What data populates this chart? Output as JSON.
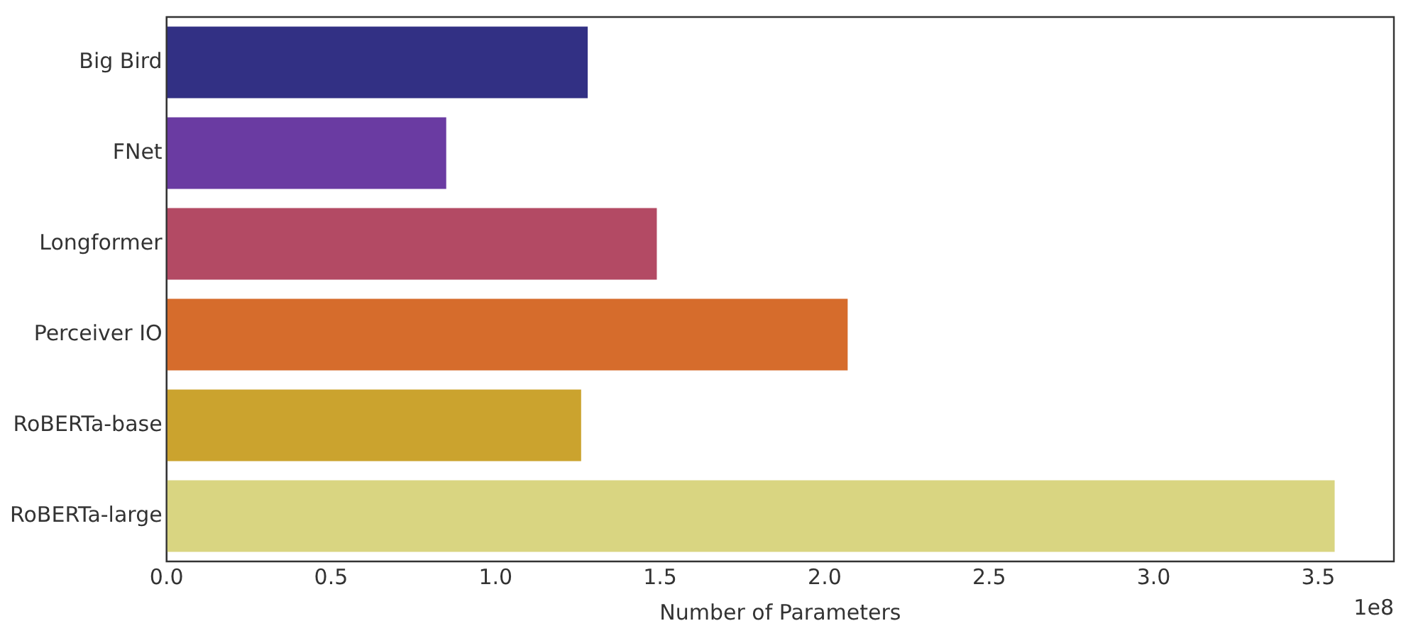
{
  "chart_data": {
    "type": "bar",
    "orientation": "horizontal",
    "xlabel": "Number of Parameters",
    "categories": [
      "Big Bird",
      "FNet",
      "Longformer",
      "Perceiver IO",
      "RoBERTa-base",
      "RoBERTa-large"
    ],
    "values": [
      1.28,
      0.85,
      1.49,
      2.07,
      1.26,
      3.55
    ],
    "colors": [
      "#323084",
      "#6a3ba2",
      "#b34a64",
      "#d66c2c",
      "#cba32e",
      "#d9d581"
    ],
    "xlim": [
      0,
      3.73
    ],
    "xticks": [
      {
        "value": 0,
        "label": "0.0"
      },
      {
        "value": 0.5,
        "label": "0.5"
      },
      {
        "value": 1,
        "label": "1.0"
      },
      {
        "value": 1.5,
        "label": "1.5"
      },
      {
        "value": 2,
        "label": "2.0"
      },
      {
        "value": 2.5,
        "label": "2.5"
      },
      {
        "value": 3,
        "label": "3.0"
      },
      {
        "value": 3.5,
        "label": "3.5"
      }
    ],
    "annotations": [
      "1e8"
    ],
    "grid": false,
    "legend": false
  }
}
